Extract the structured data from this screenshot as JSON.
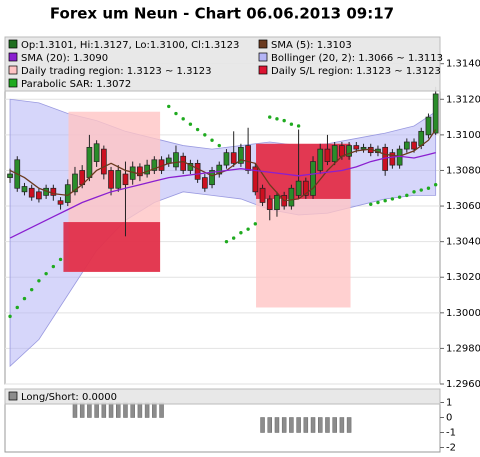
{
  "chart_data": [
    {
      "type": "candlestick",
      "title": "Forex um Neun - Chart 06.06.2013 09:17",
      "ylim": [
        1.296,
        1.3155
      ],
      "yticks": [
        {
          "value": 1.296,
          "label": "1.2960"
        },
        {
          "value": 1.298,
          "label": "1.2980"
        },
        {
          "value": 1.3,
          "label": "1.3000"
        },
        {
          "value": 1.302,
          "label": "1.3020"
        },
        {
          "value": 1.304,
          "label": "1.3040"
        },
        {
          "value": 1.306,
          "label": "1.3060"
        },
        {
          "value": 1.308,
          "label": "1.3080"
        },
        {
          "value": 1.31,
          "label": "1.3100"
        },
        {
          "value": 1.312,
          "label": "1.3120"
        },
        {
          "value": 1.314,
          "label": "1.3140"
        }
      ],
      "grid": true,
      "series": [
        {
          "name": "Op:1.3101, Hi:1.3127, Lo:1.3100, Cl:1.3123",
          "type": "candlestick",
          "color": "#1f6f1f",
          "up_color": "#2a8c2a",
          "down_color": "#cc1020",
          "open": [
            1.3076,
            1.307,
            1.3068,
            1.307,
            1.3068,
            1.3066,
            1.307,
            1.3063,
            1.3062,
            1.3068,
            1.308,
            1.3076,
            1.3085,
            1.3092,
            1.308,
            1.307,
            1.3078,
            1.3075,
            1.3082,
            1.3078,
            1.308,
            1.3086,
            1.3084,
            1.3082,
            1.3088,
            1.308,
            1.3084,
            1.3076,
            1.3072,
            1.3078,
            1.3083,
            1.309,
            1.3084,
            1.3094,
            1.3082,
            1.307,
            1.3064,
            1.3058,
            1.3066,
            1.306,
            1.3066,
            1.3074,
            1.3066,
            1.308,
            1.3092,
            1.3085,
            1.3094,
            1.3088,
            1.3094,
            1.3092,
            1.3093,
            1.309,
            1.3093,
            1.309,
            1.3083,
            1.3092,
            1.3096,
            1.3094,
            1.31,
            1.3101
          ],
          "high": [
            1.3081,
            1.3088,
            1.3073,
            1.3072,
            1.307,
            1.3072,
            1.3072,
            1.3065,
            1.3075,
            1.3082,
            1.3083,
            1.31,
            1.3097,
            1.3094,
            1.3082,
            1.3083,
            1.3085,
            1.3085,
            1.3084,
            1.3086,
            1.3088,
            1.3088,
            1.3089,
            1.3094,
            1.309,
            1.3086,
            1.3086,
            1.3078,
            1.3082,
            1.3085,
            1.3092,
            1.3102,
            1.3095,
            1.3104,
            1.3084,
            1.3072,
            1.3066,
            1.3068,
            1.3068,
            1.3072,
            1.3103,
            1.3076,
            1.3088,
            1.3095,
            1.31,
            1.3096,
            1.3096,
            1.3096,
            1.3096,
            1.3095,
            1.3095,
            1.3094,
            1.3095,
            1.3092,
            1.3094,
            1.3098,
            1.3098,
            1.3104,
            1.3112,
            1.3127
          ],
          "low": [
            1.3073,
            1.3068,
            1.3066,
            1.3063,
            1.3062,
            1.3064,
            1.3063,
            1.3058,
            1.306,
            1.3066,
            1.307,
            1.3074,
            1.3082,
            1.3075,
            1.3066,
            1.3068,
            1.3043,
            1.3072,
            1.3074,
            1.3076,
            1.3078,
            1.3078,
            1.3082,
            1.308,
            1.3078,
            1.3078,
            1.3073,
            1.3068,
            1.307,
            1.3076,
            1.3081,
            1.3082,
            1.3082,
            1.3078,
            1.3066,
            1.306,
            1.3052,
            1.3054,
            1.3058,
            1.3058,
            1.3064,
            1.3064,
            1.3064,
            1.3078,
            1.3083,
            1.3083,
            1.3086,
            1.3086,
            1.309,
            1.309,
            1.3088,
            1.3088,
            1.3077,
            1.3081,
            1.3081,
            1.309,
            1.309,
            1.3092,
            1.3098,
            1.31
          ],
          "close": [
            1.3078,
            1.3086,
            1.3071,
            1.3065,
            1.3064,
            1.307,
            1.3066,
            1.3061,
            1.3072,
            1.3078,
            1.3072,
            1.3093,
            1.3095,
            1.3078,
            1.307,
            1.308,
            1.3072,
            1.3082,
            1.3077,
            1.3083,
            1.3086,
            1.308,
            1.3087,
            1.309,
            1.308,
            1.3084,
            1.3075,
            1.307,
            1.308,
            1.3083,
            1.309,
            1.3084,
            1.3093,
            1.308,
            1.3068,
            1.3062,
            1.3058,
            1.3066,
            1.306,
            1.307,
            1.3074,
            1.3066,
            1.3085,
            1.3092,
            1.3085,
            1.3094,
            1.3088,
            1.3094,
            1.3092,
            1.3093,
            1.309,
            1.3092,
            1.308,
            1.3083,
            1.3092,
            1.3096,
            1.3092,
            1.3102,
            1.311,
            1.3123
          ]
        },
        {
          "name": "SMA (5): 1.3103",
          "type": "line",
          "color": "#6b3a1f",
          "x": [
            0,
            2,
            4,
            6,
            8,
            10,
            12,
            14,
            16,
            18,
            20,
            22,
            24,
            26,
            28,
            30,
            32,
            34,
            36,
            38,
            40,
            42,
            44,
            46,
            48,
            50,
            52,
            54,
            56,
            58,
            59
          ],
          "values": [
            1.308,
            1.3076,
            1.307,
            1.3067,
            1.3066,
            1.3072,
            1.308,
            1.3084,
            1.308,
            1.3078,
            1.3081,
            1.3084,
            1.3085,
            1.3081,
            1.3077,
            1.308,
            1.3086,
            1.3084,
            1.3072,
            1.3063,
            1.3064,
            1.307,
            1.308,
            1.3088,
            1.3091,
            1.3092,
            1.3089,
            1.3088,
            1.3091,
            1.3097,
            1.3103
          ]
        },
        {
          "name": "SMA (20): 1.3090",
          "type": "line",
          "color": "#8a1fd0",
          "x": [
            0,
            2,
            4,
            6,
            8,
            10,
            12,
            14,
            16,
            18,
            20,
            22,
            24,
            26,
            28,
            30,
            32,
            34,
            36,
            38,
            40,
            42,
            44,
            46,
            48,
            50,
            52,
            54,
            56,
            58,
            59
          ],
          "values": [
            1.3042,
            1.3046,
            1.305,
            1.3054,
            1.3058,
            1.3062,
            1.3065,
            1.3068,
            1.307,
            1.3072,
            1.3074,
            1.3076,
            1.3077,
            1.3078,
            1.3079,
            1.308,
            1.3081,
            1.308,
            1.3079,
            1.3078,
            1.3077,
            1.3078,
            1.3079,
            1.308,
            1.3082,
            1.3085,
            1.3087,
            1.3088,
            1.3087,
            1.3089,
            1.309
          ]
        },
        {
          "name": "Bollinger (20, 2): 1.3066 ~ 1.3113",
          "type": "band",
          "color": "#b4b4f5",
          "x": [
            0,
            4,
            8,
            12,
            16,
            20,
            24,
            28,
            32,
            36,
            40,
            44,
            48,
            52,
            56,
            59
          ],
          "upper": [
            1.312,
            1.3118,
            1.3112,
            1.3108,
            1.3102,
            1.3098,
            1.3094,
            1.3092,
            1.3094,
            1.3096,
            1.3094,
            1.3095,
            1.3098,
            1.3101,
            1.3105,
            1.3113
          ],
          "lower": [
            1.297,
            1.2985,
            1.301,
            1.3035,
            1.3052,
            1.3062,
            1.3068,
            1.3066,
            1.3064,
            1.3058,
            1.3055,
            1.3056,
            1.306,
            1.3064,
            1.3066,
            1.3066
          ]
        },
        {
          "name": "Daily trading region: 1.3123 ~ 1.3123",
          "type": "region",
          "color": "#ffc4c4",
          "regions": [
            {
              "x": [
                8.1,
                20.8
              ],
              "y": [
                1.3023,
                1.3113
              ]
            },
            {
              "x": [
                34.1,
                47.2
              ],
              "y": [
                1.3003,
                1.3095
              ]
            }
          ]
        },
        {
          "name": "Daily S/L region: 1.3123 ~ 1.3123",
          "type": "region",
          "color": "#dc1432",
          "regions": [
            {
              "x": [
                7.4,
                20.8
              ],
              "y": [
                1.3023,
                1.3051
              ]
            },
            {
              "x": [
                34.1,
                47.2
              ],
              "y": [
                1.3064,
                1.3095
              ]
            }
          ]
        },
        {
          "name": "Parabolic SAR: 1.3072",
          "type": "scatter",
          "color": "#1faa1f",
          "values": [
            1.2998,
            1.3003,
            1.3008,
            1.3013,
            1.3018,
            1.3022,
            1.3026,
            1.303,
            null,
            null,
            null,
            null,
            null,
            null,
            null,
            null,
            null,
            null,
            null,
            null,
            null,
            null,
            1.3116,
            1.3112,
            1.3109,
            1.3106,
            1.3103,
            1.31,
            1.3097,
            1.3094,
            1.304,
            1.3042,
            1.3045,
            1.3047,
            1.305,
            null,
            1.311,
            1.3109,
            1.3108,
            1.3106,
            1.3105,
            null,
            null,
            null,
            null,
            null,
            null,
            null,
            null,
            null,
            1.3061,
            1.3062,
            1.3063,
            1.3064,
            1.3065,
            1.3066,
            1.3068,
            1.3069,
            1.307,
            1.3072
          ]
        }
      ]
    },
    {
      "type": "bar",
      "ylim": [
        -2.3,
        1.9
      ],
      "yticks": [
        1,
        0,
        -1,
        -2
      ],
      "series": [
        {
          "name": "Long/Short: 0.0000",
          "color": "#8c8c8c",
          "values": [
            0,
            0,
            0,
            0,
            0,
            0,
            0,
            0,
            0,
            1,
            1,
            1,
            1,
            1,
            1,
            1,
            1,
            1,
            1,
            1,
            1,
            1,
            0,
            0,
            0,
            0,
            0,
            0,
            0,
            0,
            0,
            0,
            0,
            0,
            0,
            -1,
            -1,
            -1,
            -1,
            -1,
            -1,
            -1,
            -1,
            -1,
            -1,
            -1,
            -1,
            -1,
            0,
            0,
            0,
            0,
            0,
            0,
            0,
            0,
            0,
            0,
            0,
            0
          ]
        }
      ]
    }
  ]
}
